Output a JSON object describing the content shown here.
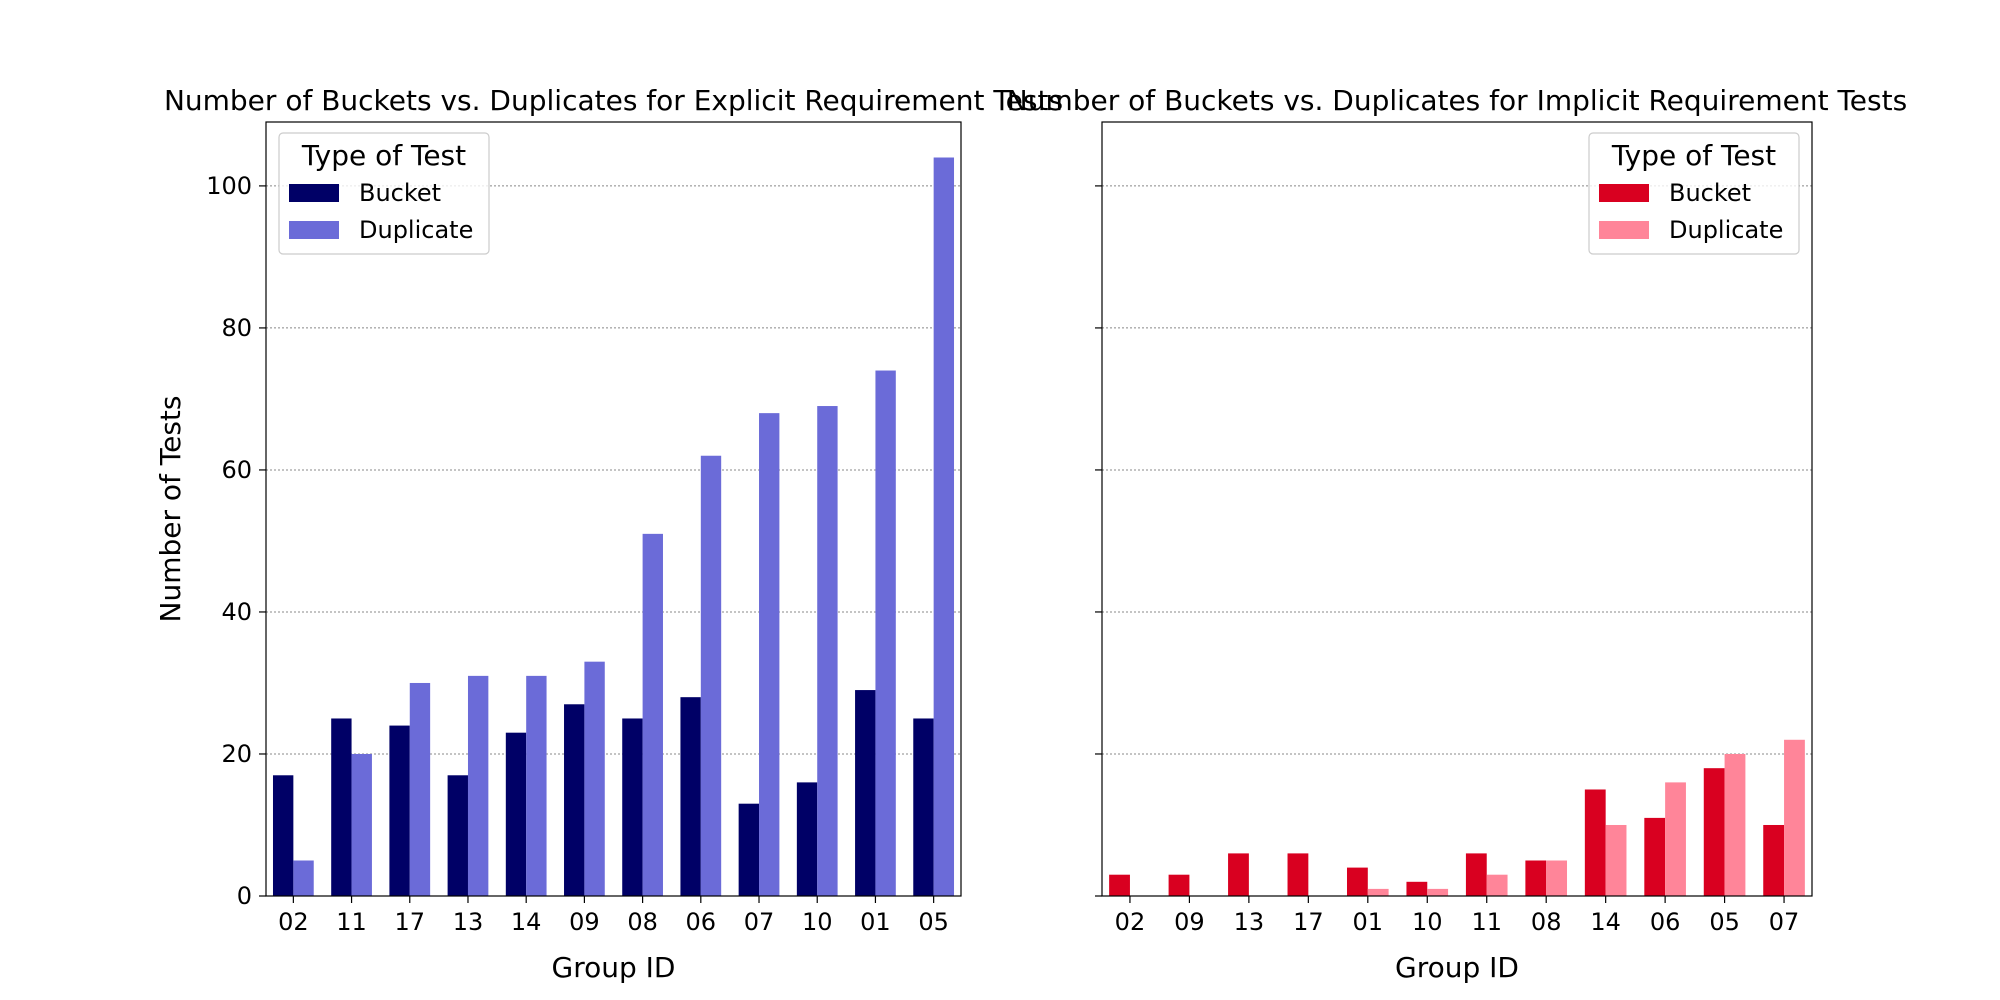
{
  "chart_data": [
    {
      "type": "bar",
      "title": "Number of Buckets vs. Duplicates for Explicit Requirement Tests",
      "xlabel": "Group ID",
      "ylabel": "Number of Tests",
      "ylim": [
        0,
        109
      ],
      "yticks": [
        0,
        20,
        40,
        60,
        80,
        100
      ],
      "y_tick_labels_visible": true,
      "grid": "horizontal dotted",
      "legend_title": "Type of Test",
      "legend_position": "top-left",
      "categories": [
        "02",
        "11",
        "17",
        "13",
        "14",
        "09",
        "08",
        "06",
        "07",
        "10",
        "01",
        "05"
      ],
      "series": [
        {
          "name": "Bucket",
          "color": "#000066",
          "values": [
            17,
            25,
            24,
            17,
            23,
            27,
            25,
            28,
            13,
            16,
            29,
            25
          ]
        },
        {
          "name": "Duplicate",
          "color": "#6b6bd8",
          "values": [
            5,
            20,
            30,
            31,
            31,
            33,
            51,
            62,
            68,
            69,
            74,
            104
          ]
        }
      ]
    },
    {
      "type": "bar",
      "title": "Number of Buckets vs. Duplicates for Implicit Requirement Tests",
      "xlabel": "Group ID",
      "ylabel": "",
      "ylim": [
        0,
        109
      ],
      "yticks": [
        0,
        20,
        40,
        60,
        80,
        100
      ],
      "y_tick_labels_visible": false,
      "grid": "horizontal dotted",
      "legend_title": "Type of Test",
      "legend_position": "top-right",
      "categories": [
        "02",
        "09",
        "13",
        "17",
        "01",
        "10",
        "11",
        "08",
        "14",
        "06",
        "05",
        "07"
      ],
      "series": [
        {
          "name": "Bucket",
          "color": "#d90020",
          "values": [
            3,
            3,
            6,
            6,
            4,
            2,
            6,
            5,
            15,
            11,
            18,
            10
          ]
        },
        {
          "name": "Duplicate",
          "color": "#ff8599",
          "values": [
            0,
            0,
            0,
            0,
            1,
            1,
            3,
            5,
            10,
            16,
            20,
            22
          ]
        }
      ]
    }
  ]
}
